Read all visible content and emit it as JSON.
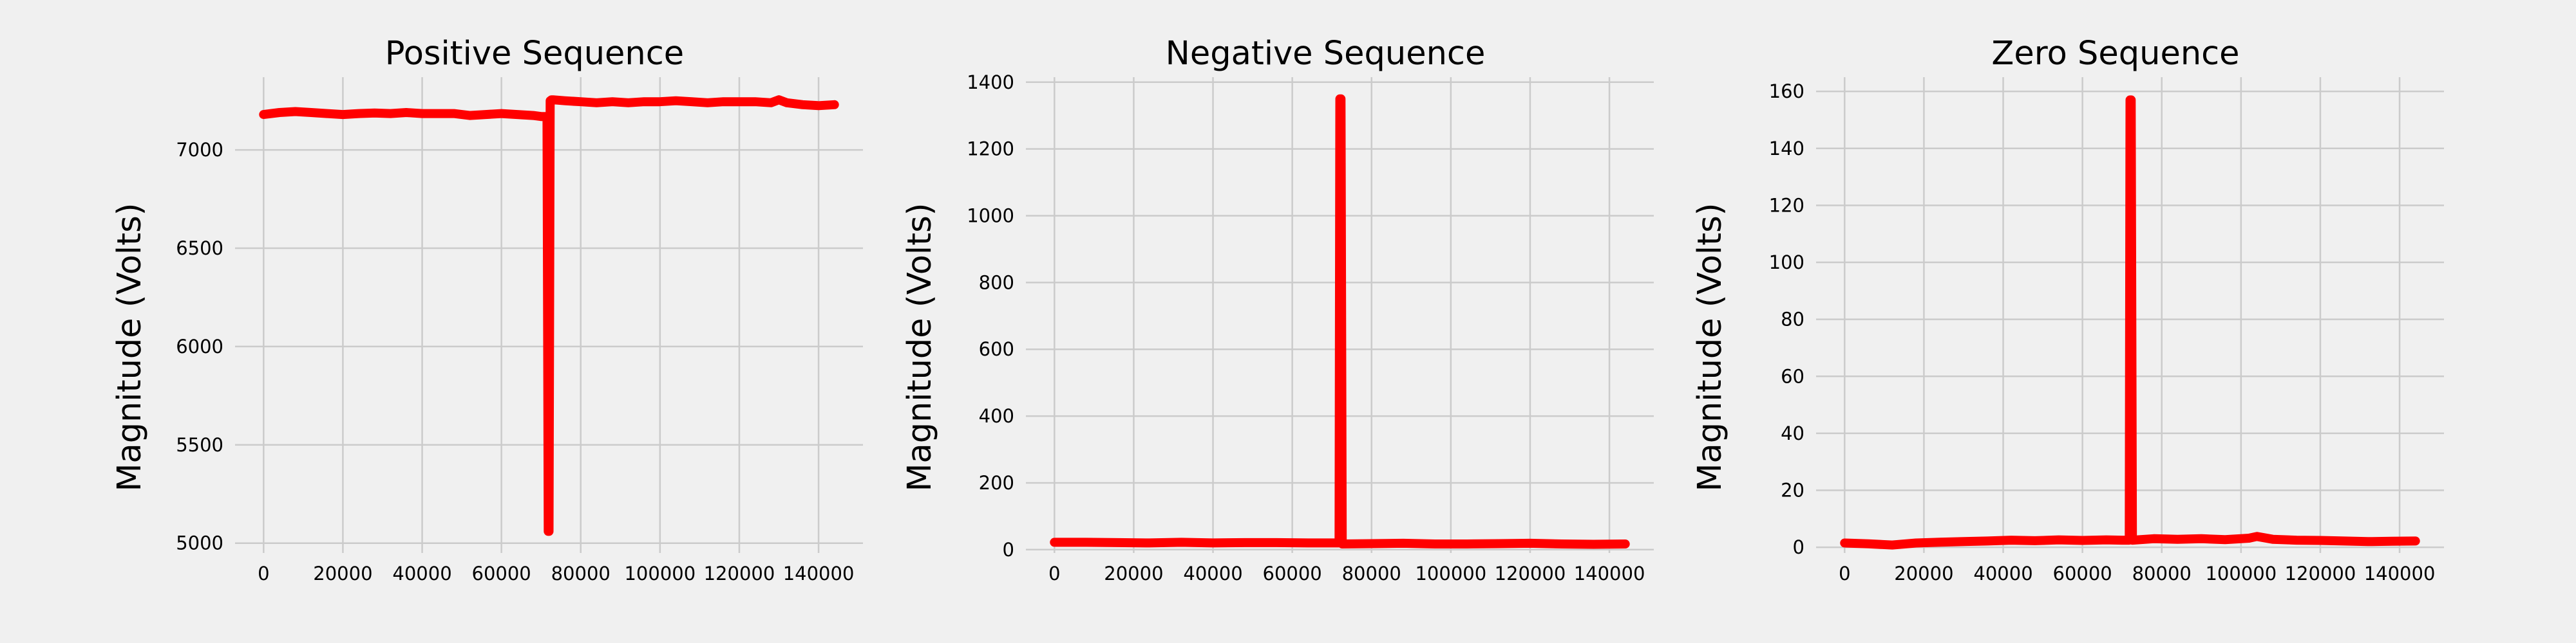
{
  "colors": {
    "background": "#f0f0f0",
    "grid": "#cbcbcb",
    "series": "#ff0000"
  },
  "chart_data": [
    {
      "type": "line",
      "title": "Positive Sequence",
      "xlabel": "",
      "ylabel": "Magnitude (Volts)",
      "xlim": [
        -7200,
        151200
      ],
      "ylim": [
        4950,
        7370
      ],
      "xticks": [
        0,
        20000,
        40000,
        60000,
        80000,
        100000,
        120000,
        140000
      ],
      "yticks": [
        5000,
        5500,
        6000,
        6500,
        7000
      ],
      "grid": true,
      "series": [
        {
          "x": [
            0,
            4000,
            8000,
            12000,
            16000,
            20000,
            24000,
            28000,
            32000,
            36000,
            40000,
            44000,
            48000,
            52000,
            56000,
            60000,
            64000,
            68000,
            70000,
            71500,
            71800,
            72000,
            72300,
            72600,
            73000,
            76000,
            80000,
            84000,
            88000,
            92000,
            96000,
            100000,
            104000,
            108000,
            112000,
            116000,
            120000,
            124000,
            128000,
            130000,
            132000,
            136000,
            140000,
            144000
          ],
          "y": [
            7180,
            7190,
            7195,
            7190,
            7185,
            7180,
            7185,
            7188,
            7185,
            7190,
            7185,
            7185,
            7185,
            7175,
            7180,
            7185,
            7180,
            7175,
            7170,
            7170,
            5060,
            5060,
            7250,
            7255,
            7255,
            7250,
            7245,
            7240,
            7245,
            7240,
            7245,
            7245,
            7250,
            7245,
            7240,
            7245,
            7245,
            7245,
            7240,
            7255,
            7240,
            7230,
            7225,
            7230
          ]
        }
      ]
    },
    {
      "type": "line",
      "title": "Negative Sequence",
      "xlabel": "",
      "ylabel": "Magnitude (Volts)",
      "xlim": [
        -7200,
        151200
      ],
      "ylim": [
        -10,
        1415
      ],
      "xticks": [
        0,
        20000,
        40000,
        60000,
        80000,
        100000,
        120000,
        140000
      ],
      "yticks": [
        0,
        200,
        400,
        600,
        800,
        1000,
        1200,
        1400
      ],
      "grid": true,
      "series": [
        {
          "x": [
            0,
            8000,
            16000,
            24000,
            32000,
            40000,
            48000,
            56000,
            64000,
            70000,
            71800,
            72000,
            72300,
            72600,
            80000,
            88000,
            96000,
            104000,
            112000,
            120000,
            128000,
            136000,
            144000
          ],
          "y": [
            22,
            22,
            21,
            20,
            22,
            20,
            21,
            21,
            20,
            20,
            20,
            1350,
            1350,
            17,
            18,
            19,
            17,
            17,
            18,
            19,
            17,
            16,
            17
          ]
        }
      ]
    },
    {
      "type": "line",
      "title": "Zero Sequence",
      "xlabel": "",
      "ylabel": "Magnitude (Volts)",
      "xlim": [
        -7200,
        151200
      ],
      "ylim": [
        -2,
        165
      ],
      "xticks": [
        0,
        20000,
        40000,
        60000,
        80000,
        100000,
        120000,
        140000
      ],
      "yticks": [
        0,
        20,
        40,
        60,
        80,
        100,
        120,
        140,
        160
      ],
      "grid": true,
      "series": [
        {
          "x": [
            0,
            6000,
            12000,
            18000,
            24000,
            30000,
            36000,
            42000,
            48000,
            54000,
            60000,
            66000,
            70000,
            71800,
            72000,
            72300,
            72600,
            78000,
            84000,
            90000,
            96000,
            102000,
            104000,
            108000,
            114000,
            120000,
            126000,
            132000,
            138000,
            144000
          ],
          "y": [
            1.5,
            1.2,
            0.8,
            1.5,
            1.8,
            2.0,
            2.2,
            2.5,
            2.3,
            2.6,
            2.4,
            2.6,
            2.5,
            2.5,
            157,
            157,
            2.5,
            3.0,
            2.8,
            3.0,
            2.7,
            3.2,
            3.8,
            2.8,
            2.5,
            2.4,
            2.2,
            2.0,
            2.1,
            2.2
          ]
        }
      ]
    }
  ]
}
